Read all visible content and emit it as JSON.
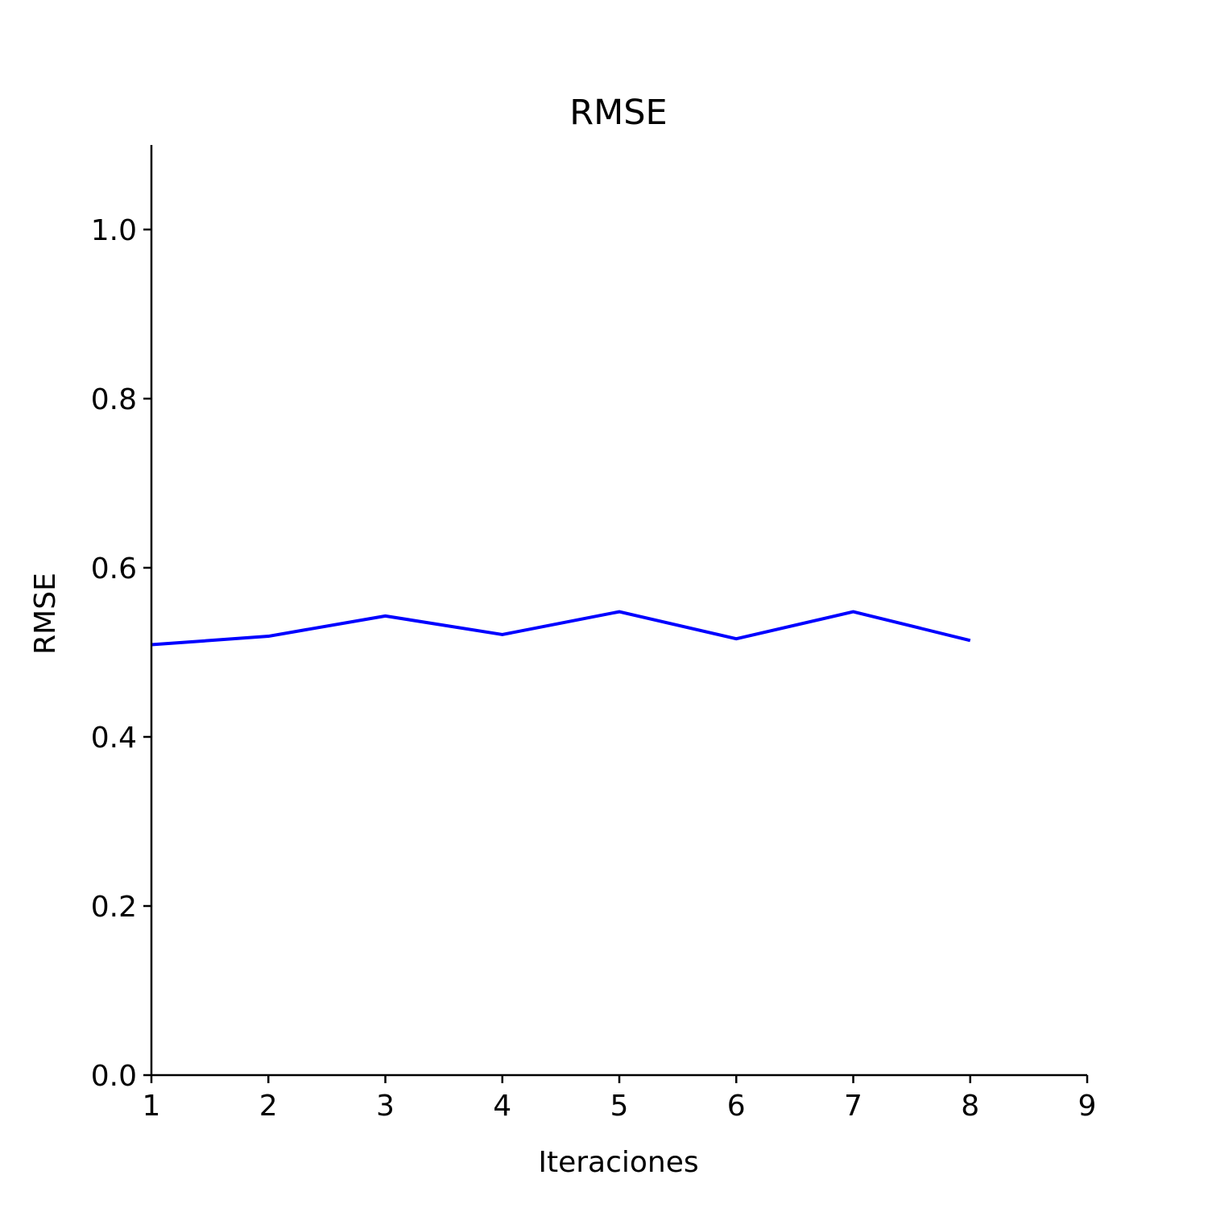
{
  "chart_data": {
    "type": "line",
    "title": "RMSE",
    "xlabel": "Iteraciones",
    "ylabel": "RMSE",
    "xlim": [
      1,
      9
    ],
    "ylim": [
      0,
      1.1
    ],
    "x_ticks": [
      1,
      2,
      3,
      4,
      5,
      6,
      7,
      8,
      9
    ],
    "y_ticks": [
      "0.0",
      "0.2",
      "0.4",
      "0.6",
      "0.8",
      "1.0"
    ],
    "grid": false,
    "series": [
      {
        "x": [
          1,
          2,
          3,
          4,
          5,
          6,
          7,
          8
        ],
        "values": [
          0.509,
          0.519,
          0.543,
          0.521,
          0.548,
          0.516,
          0.548,
          0.514
        ],
        "color": "#0000ff"
      }
    ]
  }
}
